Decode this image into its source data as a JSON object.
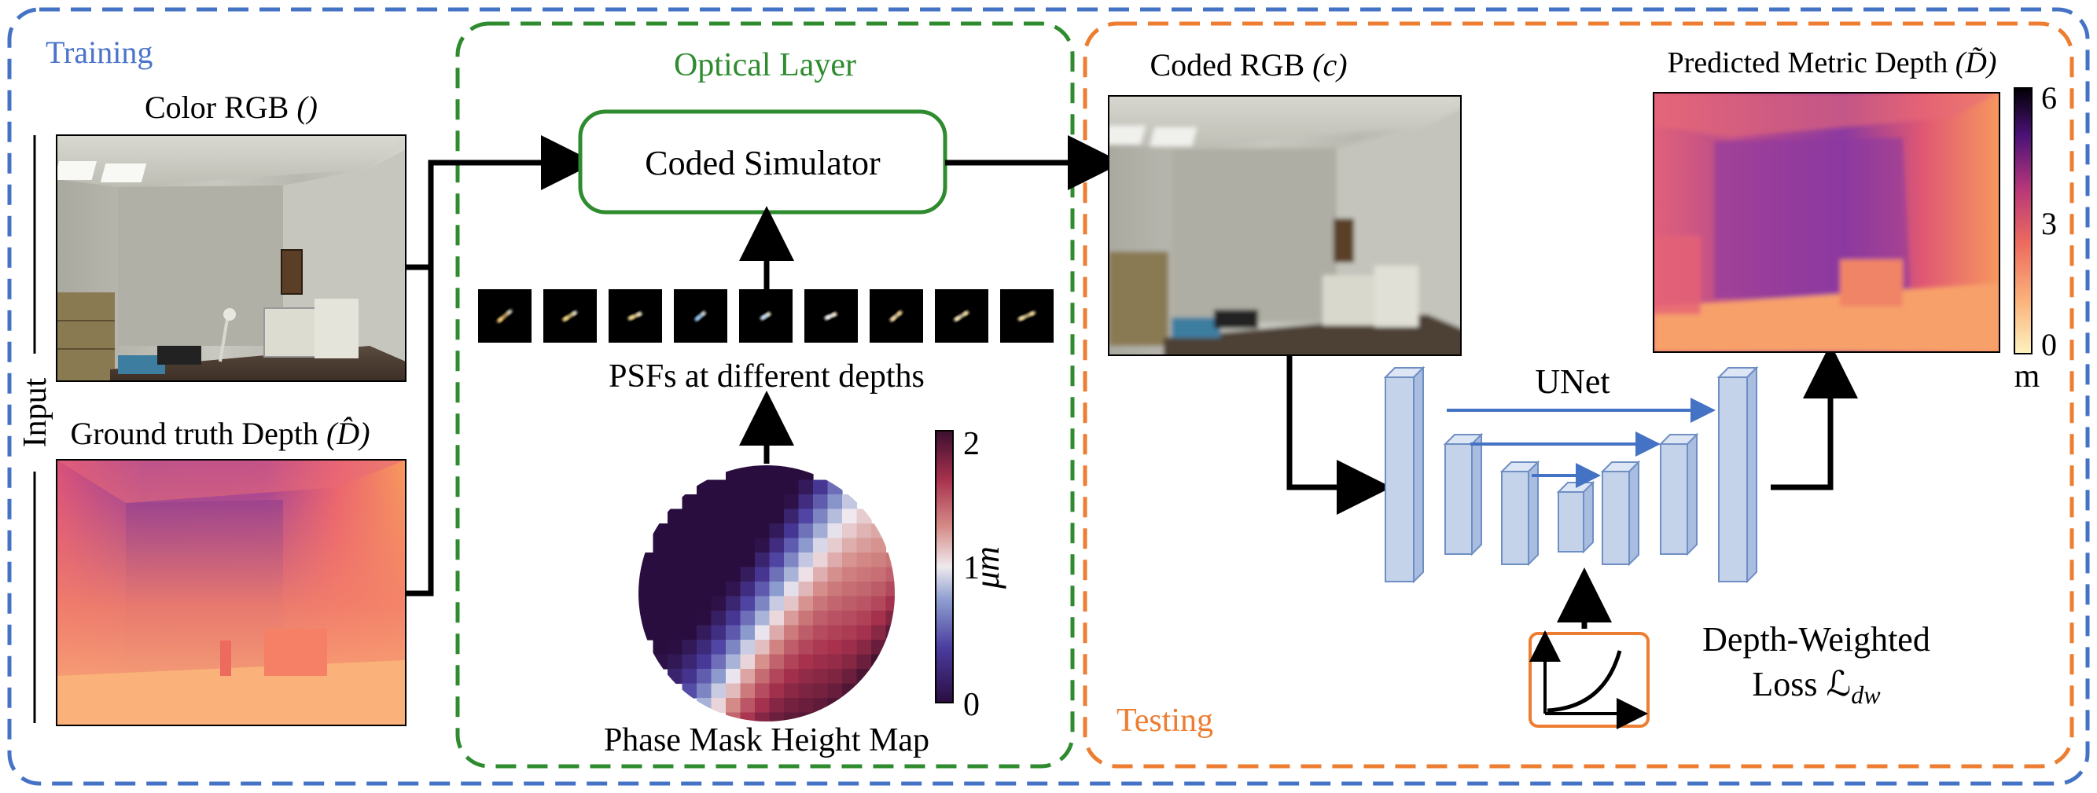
{
  "regions": {
    "training": "Training",
    "optical_layer": "Optical Layer",
    "testing": "Testing",
    "input": "Input"
  },
  "labels": {
    "color_rgb": "Color RGB",
    "color_rgb_symbol": "(𝒤)",
    "ground_truth_depth": "Ground truth Depth",
    "ground_truth_symbol": "(D̂)",
    "coded_simulator": "Coded Simulator",
    "psfs": "PSFs at different depths",
    "phase_mask": "Phase Mask Height Map",
    "coded_rgb": "Coded RGB",
    "coded_rgb_symbol": "(𝒤c)",
    "predicted_depth": "Predicted Metric Depth",
    "predicted_symbol": "(D̃)",
    "unet": "UNet",
    "loss_line1": "Depth-Weighted",
    "loss_line2": "Loss ℒ",
    "loss_sub": "dw"
  },
  "colorbars": {
    "phase_mask": {
      "max": "2",
      "mid": "1",
      "min": "0",
      "unit": "μm"
    },
    "depth": {
      "max": "6",
      "mid": "3",
      "min": "0",
      "unit": "m"
    }
  },
  "colors": {
    "training_border": "#4472c4",
    "optical_border": "#2e8b2e",
    "testing_border": "#ed7d31",
    "training_text": "#4a74c9",
    "optical_text": "#2e8b2e",
    "testing_text": "#ed7d31",
    "unet_block": "#c5d3ea",
    "unet_block_edge": "#6f8fc4",
    "skip_arrow": "#4472c4"
  }
}
